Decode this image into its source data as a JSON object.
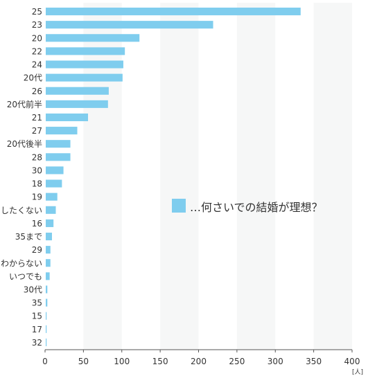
{
  "chart_data": {
    "type": "bar",
    "orientation": "horizontal",
    "legend": "…何さいでの結婚が理想？",
    "unit": "[人]",
    "xlim": [
      0,
      400
    ],
    "x_ticks": [
      0,
      50,
      100,
      150,
      200,
      250,
      300,
      350,
      400
    ],
    "grid": "alternating vertical bands",
    "categories": [
      "25",
      "23",
      "20",
      "22",
      "24",
      "20代",
      "26",
      "20代前半",
      "21",
      "27",
      "20代後半",
      "28",
      "30",
      "18",
      "19",
      "したくない",
      "16",
      "35まで",
      "29",
      "わからない",
      "いつでも",
      "30代",
      "35",
      "15",
      "17",
      "32"
    ],
    "values": [
      333,
      219,
      123,
      104,
      102,
      101,
      83,
      82,
      56,
      42,
      33,
      33,
      24,
      22,
      16,
      14,
      11,
      9,
      7,
      7,
      6,
      3,
      3,
      2,
      2,
      2
    ]
  },
  "colors": {
    "bar": "#7fcdee",
    "band": "#f6f7f7",
    "axis": "#555555",
    "text": "#333333"
  }
}
